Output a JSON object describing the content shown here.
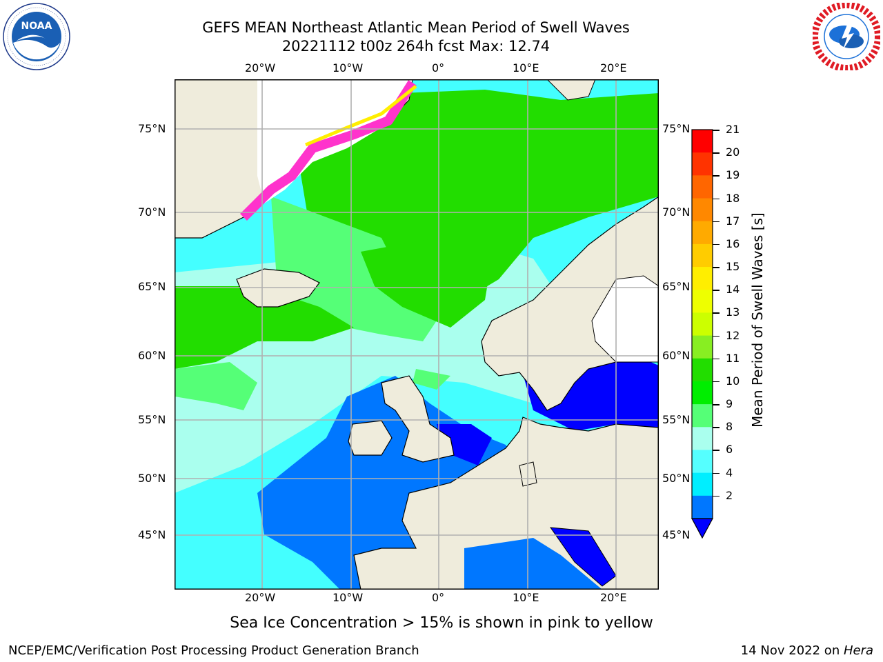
{
  "header": {
    "title_line1": "GEFS MEAN Northeast Atlantic Mean Period of Swell Waves",
    "title_line2": "20221112 t00z 264h fcst   Max: 12.74"
  },
  "logos": {
    "left": {
      "name": "NOAA",
      "ring_text": "NATIONAL OCEANIC AND ATMOSPHERIC ADMINISTRATION · U.S. DEPARTMENT OF COMMERCE"
    },
    "right": {
      "name": "NATIONAL WEATHER SERVICE"
    }
  },
  "map": {
    "lon_labels": [
      "20°W",
      "10°W",
      "0°",
      "10°E",
      "20°E"
    ],
    "lat_labels": [
      "75°N",
      "70°N",
      "65°N",
      "60°N",
      "55°N",
      "50°N",
      "45°N"
    ],
    "colors": {
      "land": "#efecdc",
      "grid": "#b0b0b0",
      "coast": "#000000",
      "ice_edge": "#ff33cc"
    }
  },
  "colorbar": {
    "label": "Mean Period of Swell Waves [s]",
    "ticks": [
      "21",
      "20",
      "19",
      "18",
      "17",
      "16",
      "15",
      "14",
      "13",
      "12",
      "11",
      "10",
      "9",
      "8",
      "6",
      "4",
      "2"
    ],
    "colors": [
      "#ff0000",
      "#ff3300",
      "#ff6600",
      "#ff8800",
      "#ffaa00",
      "#ffcc00",
      "#ffee00",
      "#eeff00",
      "#ccff00",
      "#88ee22",
      "#22dd00",
      "#00ee00",
      "#55ff77",
      "#aaffee",
      "#55ffff",
      "#00eeff",
      "#0077ff"
    ],
    "under_color": "#0000ff"
  },
  "notes": {
    "sea_ice": "Sea Ice Concentration > 15% is shown in pink to yellow",
    "left_footer": "NCEP/EMC/Verification Post Processing Product Generation Branch",
    "right_footer_date": "14 Nov 2022 on ",
    "right_footer_machine": "Hera"
  }
}
